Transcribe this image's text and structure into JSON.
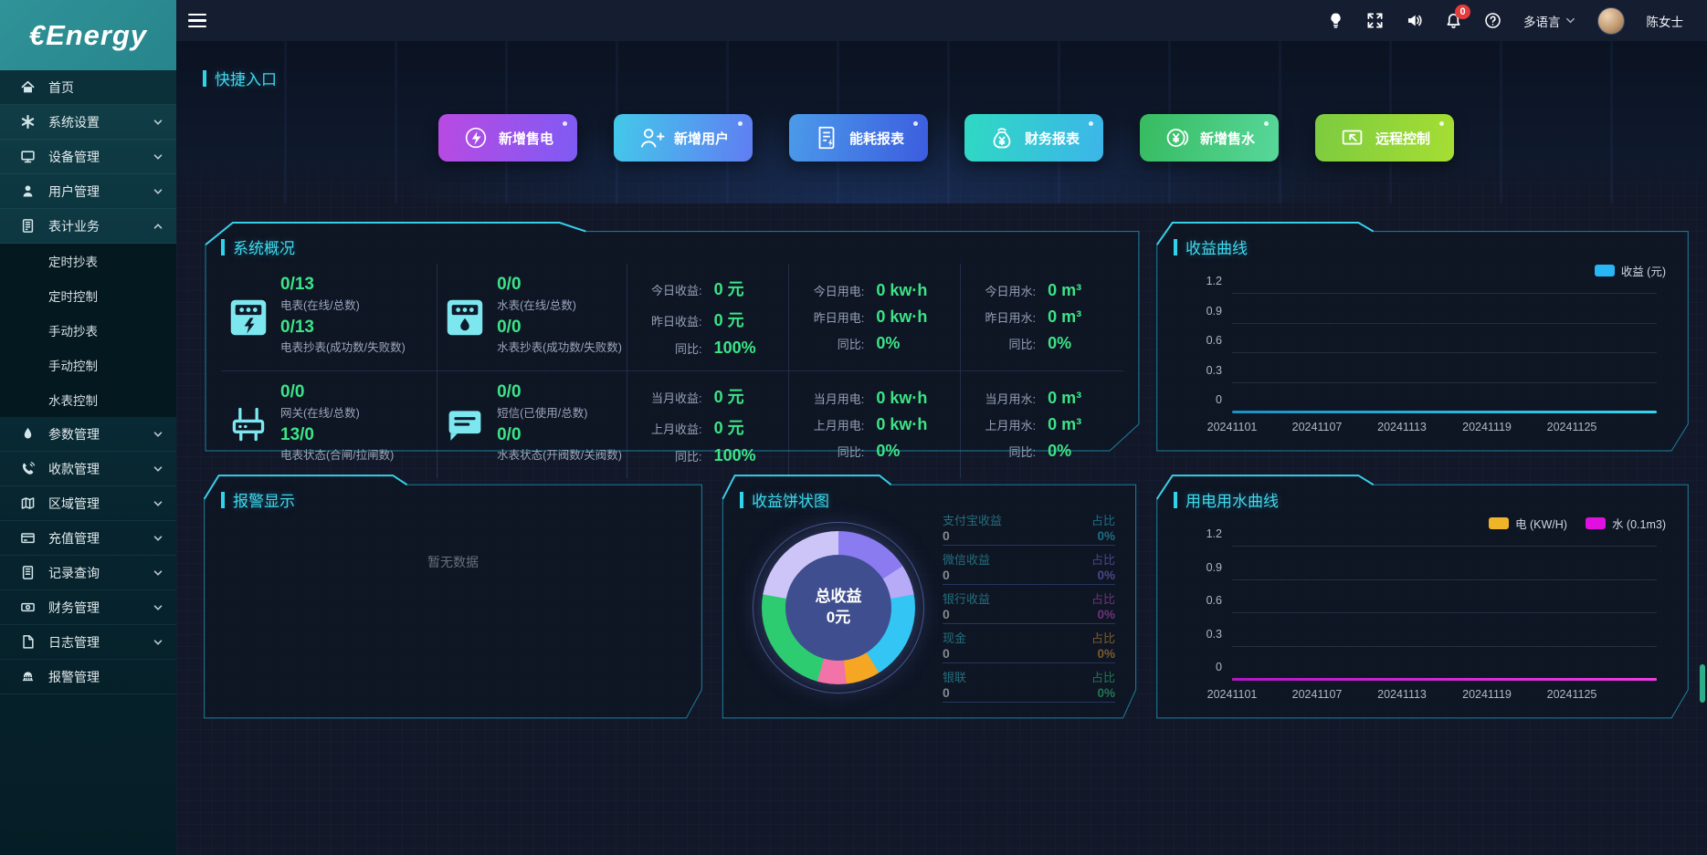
{
  "brand": {
    "name": "€Energy"
  },
  "topbar": {
    "notification_count": "0",
    "language_label": "多语言",
    "username": "陈女士"
  },
  "sidebar": {
    "items": [
      {
        "label": "首页",
        "icon": "home",
        "active": true
      },
      {
        "label": "系统设置",
        "icon": "gear",
        "chevron": "down"
      },
      {
        "label": "设备管理",
        "icon": "monitor",
        "chevron": "down"
      },
      {
        "label": "用户管理",
        "icon": "user",
        "chevron": "down"
      },
      {
        "label": "表计业务",
        "icon": "meter",
        "chevron": "up",
        "expanded": true
      },
      {
        "label": "定时抄表",
        "type": "sub"
      },
      {
        "label": "定时控制",
        "type": "sub"
      },
      {
        "label": "手动抄表",
        "type": "sub"
      },
      {
        "label": "手动控制",
        "type": "sub"
      },
      {
        "label": "水表控制",
        "type": "sub"
      },
      {
        "label": "参数管理",
        "icon": "drop",
        "chevron": "down"
      },
      {
        "label": "收款管理",
        "icon": "phone",
        "chevron": "down"
      },
      {
        "label": "区域管理",
        "icon": "map",
        "chevron": "down"
      },
      {
        "label": "充值管理",
        "icon": "card",
        "chevron": "down"
      },
      {
        "label": "记录查询",
        "icon": "records",
        "chevron": "down"
      },
      {
        "label": "财务管理",
        "icon": "money",
        "chevron": "down"
      },
      {
        "label": "日志管理",
        "icon": "file",
        "chevron": "down"
      },
      {
        "label": "报警管理",
        "icon": "alarm"
      }
    ]
  },
  "quick": {
    "title": "快捷入口",
    "buttons": [
      {
        "label": "新增售电",
        "icon": "lightning-circle",
        "from": "#b94ae2",
        "to": "#7e5bf4"
      },
      {
        "label": "新增用户",
        "icon": "user-plus",
        "from": "#43c9ea",
        "to": "#607df2"
      },
      {
        "label": "能耗报表",
        "icon": "report",
        "from": "#4b9bea",
        "to": "#3c5cdf"
      },
      {
        "label": "财务报表",
        "icon": "money-bag",
        "from": "#2fd9c2",
        "to": "#3cb5ea"
      },
      {
        "label": "新增售水",
        "icon": "coin-yuan",
        "from": "#36bb60",
        "to": "#58d79a"
      },
      {
        "label": "远程控制",
        "icon": "remote-screen",
        "from": "#7ccb40",
        "to": "#a6de33"
      }
    ]
  },
  "overview": {
    "title": "系统概况",
    "meters": [
      {
        "icon": "electric-meter",
        "v1": "0/13",
        "l1": "电表(在线/总数)",
        "v2": "0/13",
        "l2": "电表抄表(成功数/失败数)"
      },
      {
        "icon": "water-meter",
        "v1": "0/0",
        "l1": "水表(在线/总数)",
        "v2": "0/0",
        "l2": "水表抄表(成功数/失败数)"
      },
      {
        "icon": "gateway",
        "v1": "0/0",
        "l1": "网关(在线/总数)",
        "v2": "13/0",
        "l2": "电表状态(合闸/拉闸数)"
      },
      {
        "icon": "sms",
        "v1": "0/0",
        "l1": "短信(已使用/总数)",
        "v2": "0/0",
        "l2": "水表状态(开阀数/关阀数)"
      }
    ],
    "stats": [
      [
        {
          "label": "今日收益:",
          "value": "0 元"
        },
        {
          "label": "昨日收益:",
          "value": "0 元"
        },
        {
          "label": "同比:",
          "value": "100%"
        }
      ],
      [
        {
          "label": "今日用电:",
          "value": "0 kw·h"
        },
        {
          "label": "昨日用电:",
          "value": "0 kw·h"
        },
        {
          "label": "同比:",
          "value": "0%"
        }
      ],
      [
        {
          "label": "今日用水:",
          "value": "0 m³"
        },
        {
          "label": "昨日用水:",
          "value": "0 m³"
        },
        {
          "label": "同比:",
          "value": "0%"
        }
      ],
      [
        {
          "label": "当月收益:",
          "value": "0 元"
        },
        {
          "label": "上月收益:",
          "value": "0 元"
        },
        {
          "label": "同比:",
          "value": "100%"
        }
      ],
      [
        {
          "label": "当月用电:",
          "value": "0 kw·h"
        },
        {
          "label": "上月用电:",
          "value": "0 kw·h"
        },
        {
          "label": "同比:",
          "value": "0%"
        }
      ],
      [
        {
          "label": "当月用水:",
          "value": "0 m³"
        },
        {
          "label": "上月用水:",
          "value": "0 m³"
        },
        {
          "label": "同比:",
          "value": "0%"
        }
      ]
    ]
  },
  "alarm": {
    "title": "报警显示",
    "empty_text": "暂无数据"
  },
  "pie": {
    "title": "收益饼状图",
    "center_label": "总收益",
    "center_value": "0元",
    "legend": [
      {
        "label": "支付宝收益",
        "value": "0",
        "ratio_label": "占比",
        "ratio": "0%",
        "color": "#2fc9ec"
      },
      {
        "label": "微信收益",
        "value": "0",
        "ratio_label": "占比",
        "ratio": "0%",
        "color": "#8d7bf0"
      },
      {
        "label": "银行收益",
        "value": "0",
        "ratio_label": "占比",
        "ratio": "0%",
        "color": "#d750d9"
      },
      {
        "label": "现金",
        "value": "0",
        "ratio_label": "占比",
        "ratio": "0%",
        "color": "#eba23c"
      },
      {
        "label": "银联",
        "value": "0",
        "ratio_label": "占比",
        "ratio": "0%",
        "color": "#39d98c"
      }
    ]
  },
  "chart_data": [
    {
      "id": "revenue",
      "type": "line",
      "title": "收益曲线",
      "legend": [
        {
          "name": "收益 (元)",
          "color": "#29b6f6"
        }
      ],
      "x": [
        "20241101",
        "20241107",
        "20241113",
        "20241119",
        "20241125"
      ],
      "y_ticks": [
        0,
        0.3,
        0.6,
        0.9,
        1.2
      ],
      "ylim": [
        0,
        1.2
      ],
      "series": [
        {
          "name": "收益 (元)",
          "color_start": "#1793c8",
          "color_end": "#36d5ef",
          "values": [
            0,
            0,
            0,
            0,
            0
          ]
        }
      ]
    },
    {
      "id": "usage",
      "type": "line",
      "title": "用电用水曲线",
      "legend": [
        {
          "name": "电  (KW/H)",
          "color": "#f0b429"
        },
        {
          "name": "水  (0.1m3)",
          "color": "#e011e0"
        }
      ],
      "x": [
        "20241101",
        "20241107",
        "20241113",
        "20241119",
        "20241125"
      ],
      "y_ticks": [
        0,
        0.3,
        0.6,
        0.9,
        1.2
      ],
      "ylim": [
        0,
        1.2
      ],
      "series": [
        {
          "name": "电 (KW/H)",
          "color_start": "#f0b429",
          "color_end": "#f0b429",
          "values": [
            0,
            0,
            0,
            0,
            0
          ]
        },
        {
          "name": "水 (0.1m3)",
          "color_start": "#b515c9",
          "color_end": "#f03ce3",
          "values": [
            0,
            0,
            0,
            0,
            0
          ]
        }
      ]
    },
    {
      "id": "pie",
      "type": "pie",
      "title": "收益饼状图",
      "labels": [
        "支付宝收益",
        "微信收益",
        "银行收益",
        "现金",
        "银联"
      ],
      "values": [
        0,
        0,
        0,
        0,
        0
      ],
      "total_label": "总收益",
      "total_value": "0元",
      "placeholder_segments": [
        {
          "color": "#8b7bf0",
          "deg": 57
        },
        {
          "color": "#b7aaf7",
          "deg": 23
        },
        {
          "color": "#33c5f3",
          "deg": 68
        },
        {
          "color": "#f5a623",
          "deg": 26
        },
        {
          "color": "#f273a8",
          "deg": 22
        },
        {
          "color": "#2ecc71",
          "deg": 84
        },
        {
          "color": "#cdc5f8",
          "deg": 80
        }
      ]
    }
  ]
}
